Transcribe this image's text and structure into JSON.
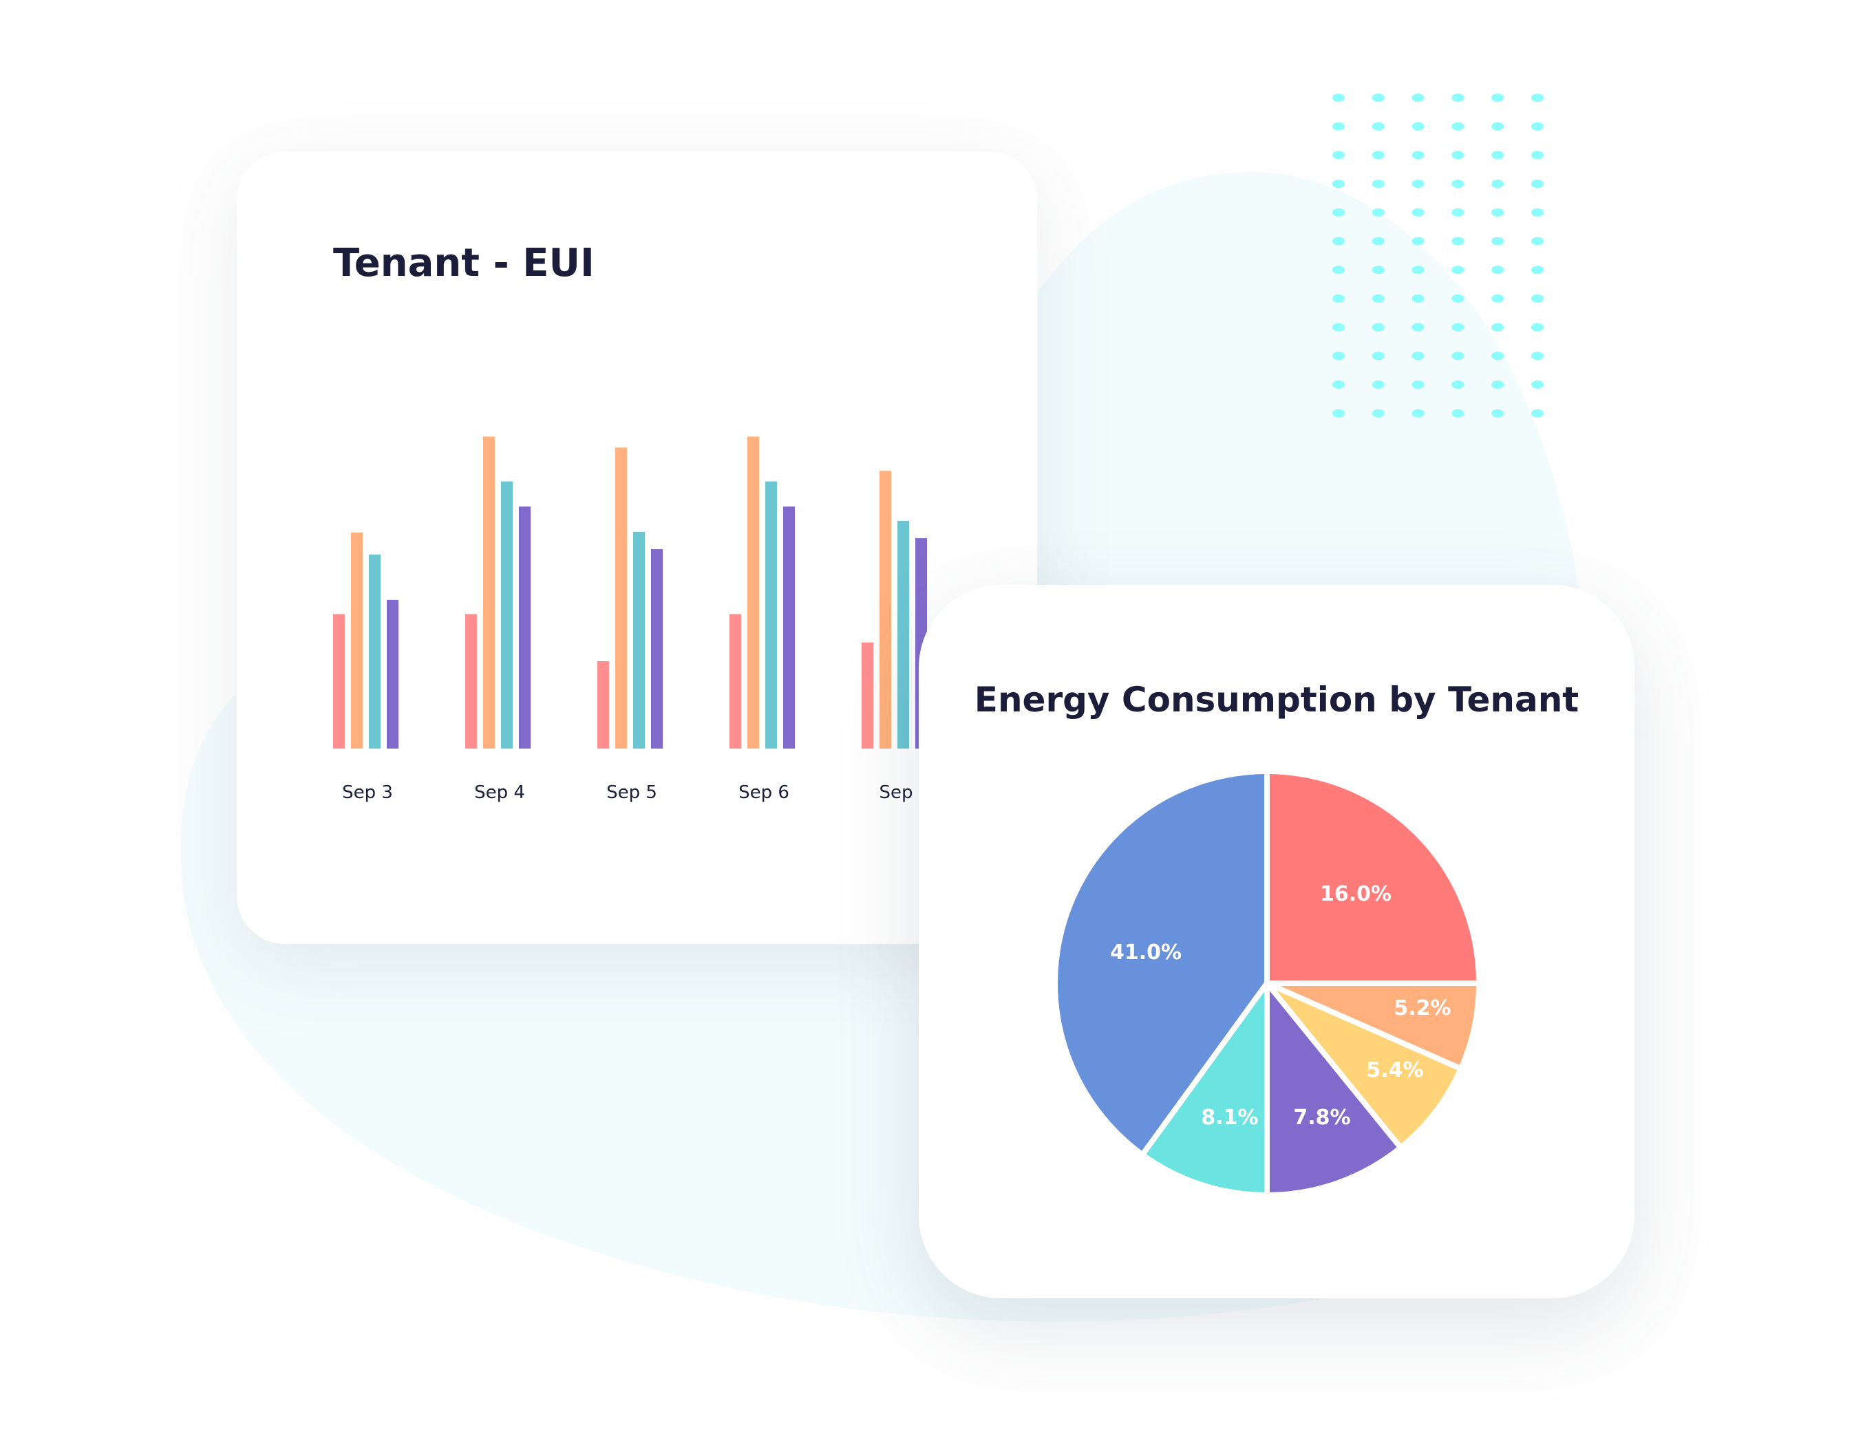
{
  "colors": {
    "background_blob": "#f3fcfd",
    "dots": "#8cfcfc",
    "title_text": "#1b1d3a"
  },
  "chart_data": [
    {
      "type": "bar",
      "title": "Tenant - EUI",
      "categories": [
        "Sep 3",
        "Sep 4",
        "Sep 5",
        "Sep 6",
        "Sep"
      ],
      "series": [
        {
          "color": "#ff8f8f",
          "values": [
            29.4,
            29.4,
            19.1,
            29.4,
            23.2
          ]
        },
        {
          "color": "#ffb07c",
          "values": [
            47.2,
            68.2,
            65.8,
            68.2,
            60.7
          ]
        },
        {
          "color": "#6cc6d2",
          "values": [
            42.4,
            58.4,
            47.4,
            58.4,
            49.8
          ]
        },
        {
          "color": "#806bcc",
          "values": [
            32.5,
            52.9,
            43.6,
            52.9,
            46.0
          ]
        }
      ],
      "xlabel": "",
      "ylabel": "",
      "grid": false,
      "legend": "none"
    },
    {
      "type": "pie",
      "title": "Energy Consumption by Tenant",
      "slices": [
        {
          "label": "16.0%",
          "value": 16.0,
          "color": "#ff7b79"
        },
        {
          "label": "5.2%",
          "value": 5.2,
          "color": "#ffb07c"
        },
        {
          "label": "5.4%",
          "value": 5.4,
          "color": "#ffd479"
        },
        {
          "label": "7.8%",
          "value": 7.8,
          "color": "#806bcc"
        },
        {
          "label": "8.1%",
          "value": 8.1,
          "color": "#6be3e1"
        },
        {
          "label": "41.0%",
          "value": 41.0,
          "color": "#6891dc"
        }
      ],
      "legend": "none"
    }
  ]
}
